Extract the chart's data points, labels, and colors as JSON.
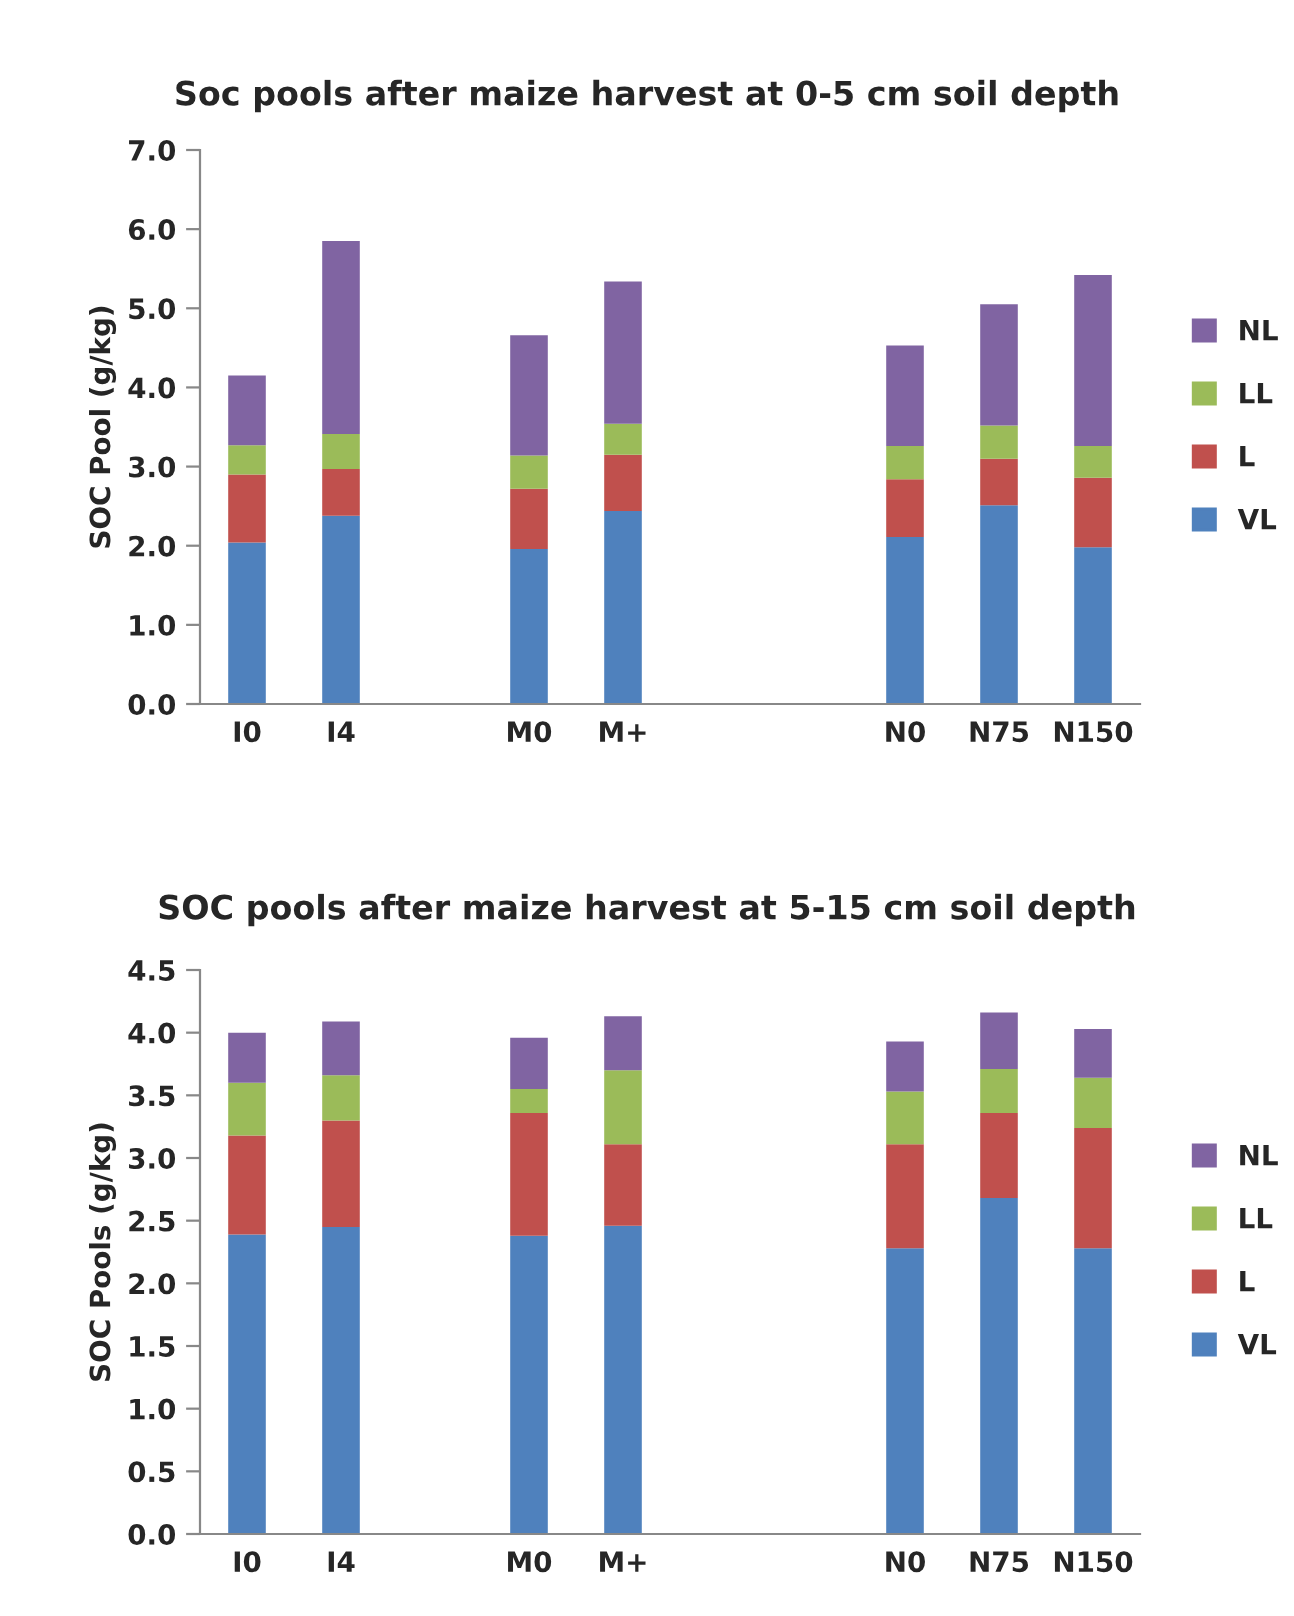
{
  "chart_data": [
    {
      "type": "bar",
      "title": "Soc pools after maize harvest at 0-5 cm soil depth",
      "ylabel": "SOC Pool (g/kg)",
      "stacked": true,
      "legend": "right",
      "grid": false,
      "categories": [
        "I0",
        "I4",
        null,
        "M0",
        "M+",
        null,
        null,
        "N0",
        "N75",
        "N150"
      ],
      "ylim": [
        0,
        7
      ],
      "yticks": [
        {
          "value": 0,
          "label": "0.0"
        },
        {
          "value": 1,
          "label": "1.0"
        },
        {
          "value": 2,
          "label": "2.0"
        },
        {
          "value": 3,
          "label": "3.0"
        },
        {
          "value": 4,
          "label": "4.0"
        },
        {
          "value": 5,
          "label": "5.0"
        },
        {
          "value": 6,
          "label": "6.0"
        },
        {
          "value": 7,
          "label": "7.0"
        }
      ],
      "series": [
        {
          "name": "VL",
          "color": "#4f81bd",
          "values": [
            2.04,
            2.38,
            null,
            1.96,
            2.44,
            null,
            null,
            2.11,
            2.51,
            1.98
          ]
        },
        {
          "name": "L",
          "color": "#c0504d",
          "values": [
            0.86,
            0.59,
            null,
            0.76,
            0.71,
            null,
            null,
            0.73,
            0.59,
            0.88
          ]
        },
        {
          "name": "LL",
          "color": "#9bbb59",
          "values": [
            0.37,
            0.44,
            null,
            0.42,
            0.39,
            null,
            null,
            0.42,
            0.42,
            0.4
          ]
        },
        {
          "name": "NL",
          "color": "#8064a2",
          "values": [
            0.88,
            2.44,
            null,
            1.52,
            1.8,
            null,
            null,
            1.27,
            1.53,
            2.16
          ]
        }
      ]
    },
    {
      "type": "bar",
      "title": "SOC pools after maize harvest at 5-15 cm soil depth",
      "ylabel": "SOC Pools (g/kg)",
      "stacked": true,
      "legend": "right",
      "grid": false,
      "categories": [
        "I0",
        "I4",
        null,
        "M0",
        "M+",
        null,
        null,
        "N0",
        "N75",
        "N150"
      ],
      "ylim": [
        0,
        4.5
      ],
      "yticks": [
        {
          "value": 0,
          "label": "0.0"
        },
        {
          "value": 0.5,
          "label": "0.5"
        },
        {
          "value": 1,
          "label": "1.0"
        },
        {
          "value": 1.5,
          "label": "1.5"
        },
        {
          "value": 2,
          "label": "2.0"
        },
        {
          "value": 2.5,
          "label": "2.5"
        },
        {
          "value": 3,
          "label": "3.0"
        },
        {
          "value": 3.5,
          "label": "3.5"
        },
        {
          "value": 4,
          "label": "4.0"
        },
        {
          "value": 4.5,
          "label": "4.5"
        }
      ],
      "series": [
        {
          "name": "VL",
          "color": "#4f81bd",
          "values": [
            2.39,
            2.45,
            null,
            2.38,
            2.46,
            null,
            null,
            2.28,
            2.68,
            2.28
          ]
        },
        {
          "name": "L",
          "color": "#c0504d",
          "values": [
            0.79,
            0.85,
            null,
            0.98,
            0.65,
            null,
            null,
            0.83,
            0.68,
            0.96
          ]
        },
        {
          "name": "LL",
          "color": "#9bbb59",
          "values": [
            0.42,
            0.36,
            null,
            0.19,
            0.59,
            null,
            null,
            0.42,
            0.35,
            0.4
          ]
        },
        {
          "name": "NL",
          "color": "#8064a2",
          "values": [
            0.4,
            0.43,
            null,
            0.41,
            0.43,
            null,
            null,
            0.4,
            0.45,
            0.39
          ]
        }
      ]
    }
  ]
}
